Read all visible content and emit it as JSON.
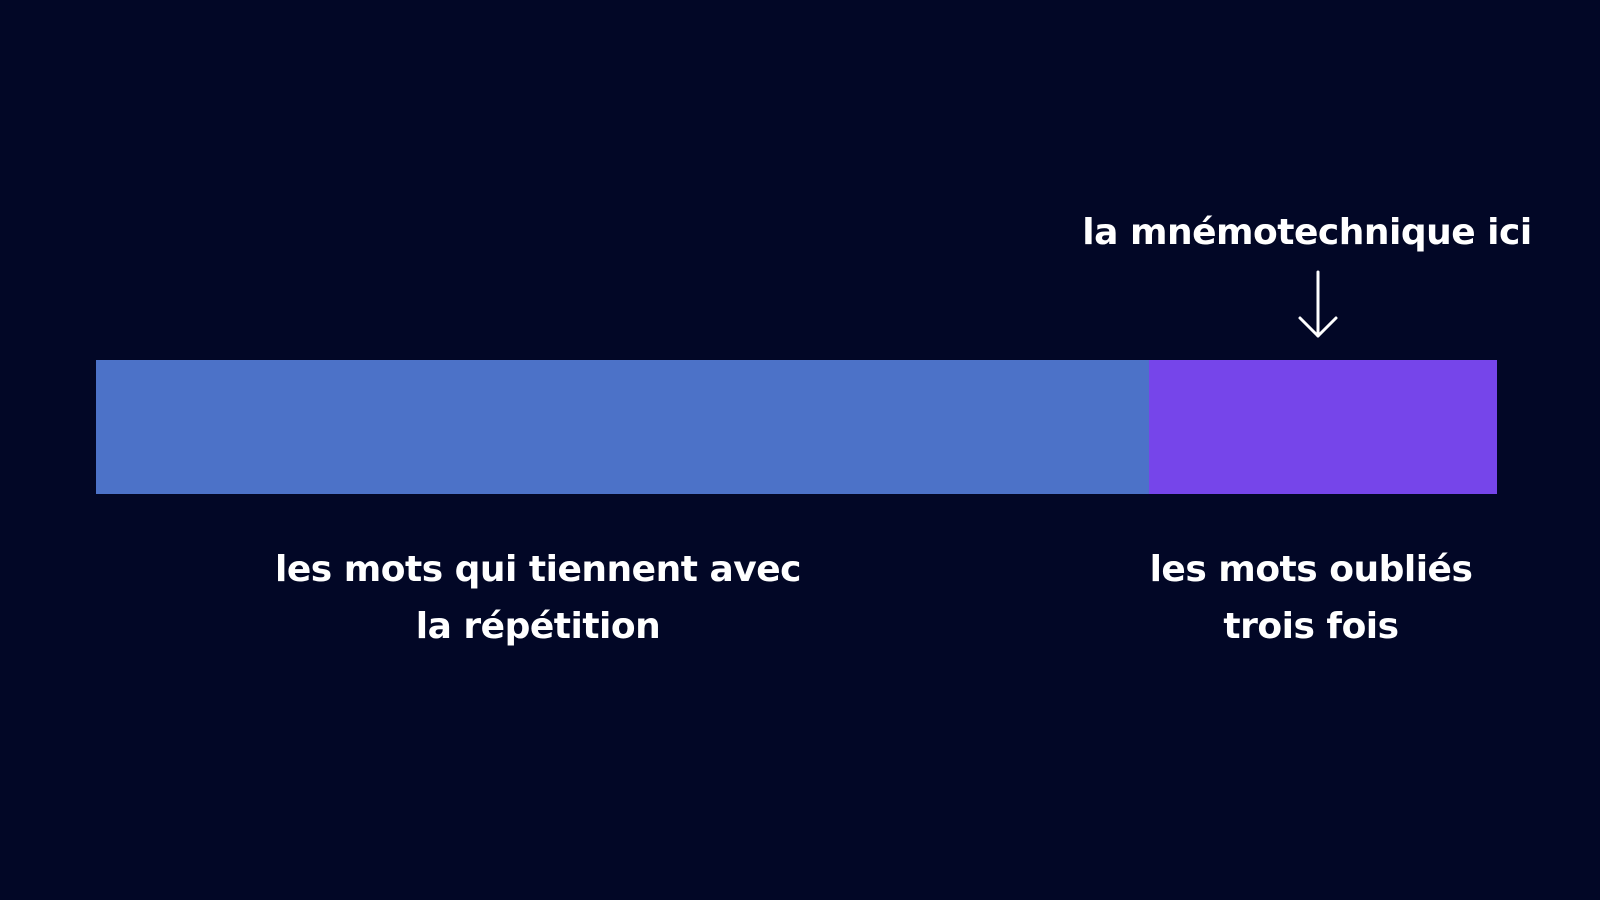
{
  "annotation": {
    "text": "la mnémotechnique ici"
  },
  "segments": [
    {
      "label_lines": [
        "les mots qui tiennent avec",
        "la répétition"
      ]
    },
    {
      "label_lines": [
        "les mots oubliés",
        "trois fois"
      ]
    }
  ]
}
